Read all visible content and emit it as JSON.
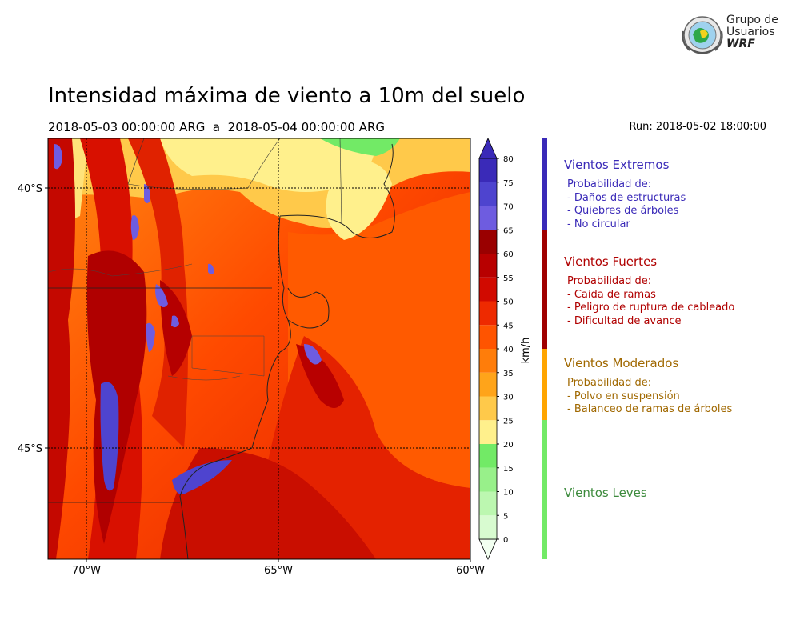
{
  "header": {
    "title": "Intensidad máxima de viento a 10m del suelo",
    "period": "2018-05-03 00:00:00 ARG  a  2018-05-04 00:00:00 ARG",
    "run": "Run: 2018-05-02 18:00:00"
  },
  "logo": {
    "line1": "Grupo de",
    "line2": "Usuarios",
    "line3": "WRF"
  },
  "map": {
    "lat_labels": [
      "40°S",
      "45°S"
    ],
    "lon_labels": [
      "70°W",
      "65°W",
      "60°W"
    ]
  },
  "colorbar": {
    "unit": "km/h",
    "ticks": [
      "0",
      "5",
      "10",
      "15",
      "20",
      "25",
      "30",
      "35",
      "40",
      "45",
      "50",
      "55",
      "60",
      "65",
      "70",
      "75",
      "80"
    ],
    "colors": [
      "#f2fff0",
      "#d8fbd0",
      "#bcf7b0",
      "#98f08a",
      "#72ea66",
      "#fff08c",
      "#ffc94a",
      "#ffa41a",
      "#ff7d0a",
      "#ff5400",
      "#ee2a00",
      "#d10a00",
      "#b80000",
      "#9a0000",
      "#6e5ce0",
      "#4e44cf",
      "#3a2ab8"
    ]
  },
  "legend": {
    "categories": [
      {
        "name": "Vientos Extremos",
        "color": "#3a2ab8",
        "text_color": "#3a2ab8",
        "intro": "Probabilidad de:",
        "items": [
          "- Daños de estructuras",
          "- Quiebres de árboles",
          "- No circular"
        ]
      },
      {
        "name": "Vientos Fuertes",
        "color": "#a00000",
        "text_color": "#b00000",
        "intro": "Probabilidad de:",
        "items": [
          "- Caida de ramas",
          "- Peligro de ruptura de cableado",
          "- Dificultad de avance"
        ]
      },
      {
        "name": "Vientos Moderados",
        "color": "#ffa500",
        "text_color": "#a06800",
        "intro": "Probabilidad de:",
        "items": [
          "- Polvo en suspensión",
          "- Balanceo de ramas de árboles"
        ]
      },
      {
        "name": "Vientos Leves",
        "color": "#72ea66",
        "text_color": "#3c8a3c",
        "intro": "",
        "items": []
      }
    ]
  }
}
